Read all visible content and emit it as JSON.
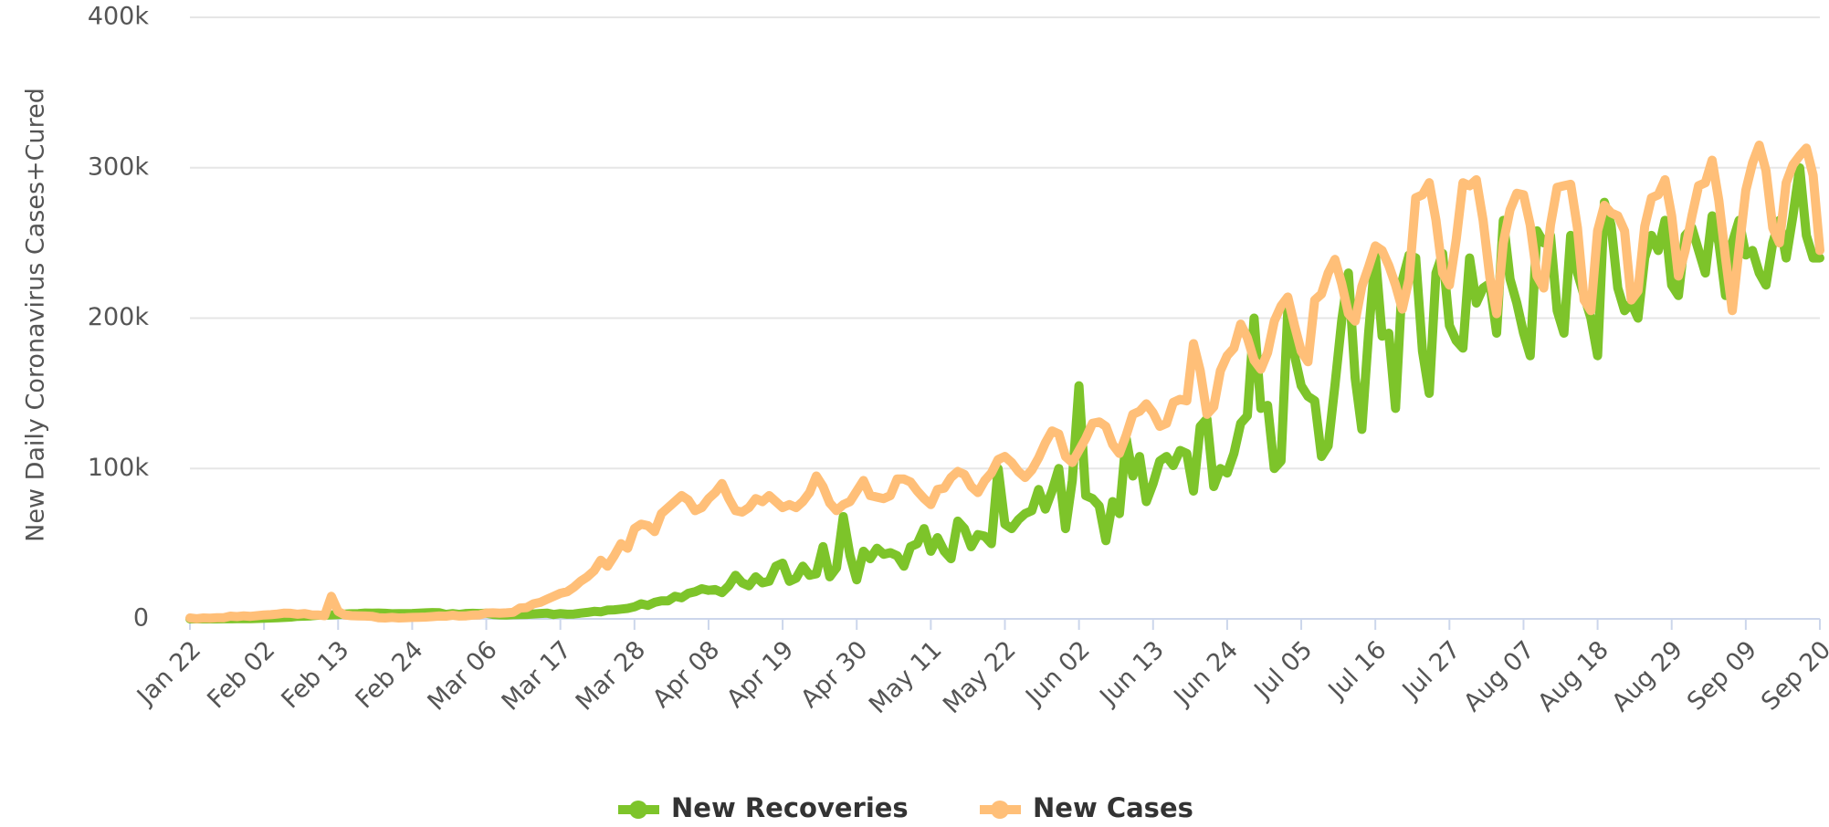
{
  "chart_data": {
    "type": "line",
    "y_label": "New Daily Coronavirus Cases+Cured",
    "legend": "bottom",
    "grid": true,
    "ylim": [
      0,
      400000
    ],
    "yticks": [
      0,
      {
        "value": 100000,
        "label": "100k"
      },
      {
        "value": 200000,
        "label": "200k"
      },
      {
        "value": 300000,
        "label": "300k"
      },
      {
        "value": 400000,
        "label": "400k"
      }
    ],
    "categories": [
      "Jan 22",
      null,
      null,
      null,
      null,
      null,
      null,
      null,
      null,
      null,
      null,
      "Feb 02",
      null,
      null,
      null,
      null,
      null,
      null,
      null,
      null,
      null,
      null,
      "Feb 13",
      null,
      null,
      null,
      null,
      null,
      null,
      null,
      null,
      null,
      null,
      "Feb 24",
      null,
      null,
      null,
      null,
      null,
      null,
      null,
      null,
      null,
      null,
      "Mar 06",
      null,
      null,
      null,
      null,
      null,
      null,
      null,
      null,
      null,
      null,
      "Mar 17",
      null,
      null,
      null,
      null,
      null,
      null,
      null,
      null,
      null,
      null,
      "Mar 28",
      null,
      null,
      null,
      null,
      null,
      null,
      null,
      null,
      null,
      null,
      "Apr 08",
      null,
      null,
      null,
      null,
      null,
      null,
      null,
      null,
      null,
      null,
      "Apr 19",
      null,
      null,
      null,
      null,
      null,
      null,
      null,
      null,
      null,
      null,
      "Apr 30",
      null,
      null,
      null,
      null,
      null,
      null,
      null,
      null,
      null,
      null,
      "May 11",
      null,
      null,
      null,
      null,
      null,
      null,
      null,
      null,
      null,
      null,
      "May 22",
      null,
      null,
      null,
      null,
      null,
      null,
      null,
      null,
      null,
      null,
      "Jun 02",
      null,
      null,
      null,
      null,
      null,
      null,
      null,
      null,
      null,
      null,
      "Jun 13",
      null,
      null,
      null,
      null,
      null,
      null,
      null,
      null,
      null,
      null,
      "Jun 24",
      null,
      null,
      null,
      null,
      null,
      null,
      null,
      null,
      null,
      null,
      "Jul 05",
      null,
      null,
      null,
      null,
      null,
      null,
      null,
      null,
      null,
      null,
      "Jul 16",
      null,
      null,
      null,
      null,
      null,
      null,
      null,
      null,
      null,
      null,
      "Jul 27",
      null,
      null,
      null,
      null,
      null,
      null,
      null,
      null,
      null,
      null,
      "Aug 07",
      null,
      null,
      null,
      null,
      null,
      null,
      null,
      null,
      null,
      null,
      "Aug 18",
      null,
      null,
      null,
      null,
      null,
      null,
      null,
      null,
      null,
      null,
      "Aug 29",
      null,
      null,
      null,
      null,
      null,
      null,
      null,
      null,
      null,
      null,
      "Sep 09",
      null,
      null,
      null,
      null,
      null,
      null,
      null,
      null,
      null,
      null,
      "Sep 20"
    ],
    "series": [
      {
        "name": "New Recoveries",
        "color": "#7dc42a",
        "values": [
          0,
          10,
          20,
          10,
          30,
          50,
          60,
          100,
          150,
          200,
          300,
          450,
          600,
          800,
          1000,
          1200,
          1700,
          1800,
          2000,
          2400,
          2500,
          2700,
          2900,
          3200,
          3400,
          3500,
          3900,
          3800,
          3900,
          3700,
          3400,
          3500,
          3500,
          3600,
          3800,
          4000,
          4200,
          4100,
          3000,
          3500,
          3000,
          3600,
          3700,
          3600,
          3800,
          3000,
          2700,
          2600,
          2800,
          2900,
          3000,
          3300,
          3600,
          3800,
          2900,
          3500,
          3100,
          3200,
          3800,
          4300,
          5000,
          4700,
          5800,
          6000,
          6500,
          7000,
          8000,
          10000,
          9000,
          11000,
          12000,
          12000,
          15000,
          14000,
          17000,
          18000,
          20000,
          19000,
          19500,
          17500,
          22000,
          29000,
          24000,
          22000,
          28000,
          24000,
          25000,
          35000,
          37000,
          25000,
          27000,
          35000,
          29000,
          30000,
          48000,
          28000,
          34000,
          68000,
          42000,
          26000,
          45000,
          40000,
          47000,
          43000,
          44000,
          42000,
          35000,
          48000,
          50000,
          60000,
          45000,
          54000,
          45000,
          40000,
          65000,
          60000,
          48000,
          56000,
          55000,
          50000,
          100000,
          63000,
          60000,
          66000,
          70000,
          72000,
          86000,
          73000,
          85000,
          100000,
          60000,
          92000,
          155000,
          82000,
          80000,
          75000,
          52000,
          78000,
          70000,
          120000,
          95000,
          108000,
          78000,
          90000,
          105000,
          108000,
          102000,
          112000,
          110000,
          85000,
          128000,
          133000,
          88000,
          100000,
          97000,
          110000,
          130000,
          135000,
          200000,
          140000,
          142000,
          100000,
          105000,
          205000,
          175000,
          155000,
          148000,
          145000,
          108000,
          115000,
          155000,
          198000,
          230000,
          160000,
          126000,
          190000,
          242000,
          188000,
          190000,
          140000,
          225000,
          242000,
          240000,
          178000,
          150000,
          230000,
          243000,
          195000,
          185000,
          180000,
          240000,
          210000,
          220000,
          223000,
          190000,
          265000,
          226000,
          210000,
          190000,
          175000,
          258000,
          250000,
          255000,
          205000,
          190000,
          255000,
          230000,
          215000,
          200000,
          175000,
          277000,
          262000,
          220000,
          205000,
          210000,
          200000,
          240000,
          255000,
          245000,
          265000,
          222000,
          215000,
          255000,
          260000,
          245000,
          230000,
          268000,
          250000,
          215000,
          250000,
          265000,
          242000,
          245000,
          230000,
          222000,
          250000,
          265000,
          240000,
          268000,
          300000,
          255000,
          240000,
          240000
        ]
      },
      {
        "name": "New Cases",
        "color": "#ffbf78",
        "values": [
          600,
          100,
          600,
          500,
          700,
          800,
          1800,
          1500,
          2000,
          1700,
          2100,
          2600,
          2800,
          3200,
          3800,
          3700,
          3100,
          3500,
          2700,
          2600,
          2100,
          15000,
          5000,
          2600,
          2100,
          2000,
          1900,
          1700,
          800,
          600,
          1000,
          600,
          700,
          1000,
          1100,
          1200,
          1500,
          1900,
          1800,
          2400,
          1900,
          2000,
          2500,
          2700,
          3900,
          4000,
          3800,
          4000,
          4400,
          7200,
          7500,
          10000,
          11000,
          13000,
          15000,
          17000,
          18000,
          21000,
          25000,
          28000,
          32000,
          39000,
          35000,
          42000,
          50000,
          47000,
          60000,
          63000,
          62000,
          58000,
          70000,
          74000,
          78000,
          82000,
          79000,
          72000,
          74000,
          80000,
          84000,
          90000,
          80000,
          72000,
          71000,
          74000,
          80000,
          78000,
          82000,
          78000,
          74000,
          76000,
          74000,
          78000,
          84000,
          95000,
          88000,
          77000,
          72000,
          76000,
          78000,
          85000,
          92000,
          82000,
          81000,
          80000,
          82000,
          93000,
          93000,
          91000,
          85000,
          80000,
          76000,
          86000,
          87000,
          94000,
          98000,
          96000,
          88000,
          84000,
          92000,
          97000,
          106000,
          108000,
          104000,
          98000,
          94000,
          99000,
          107000,
          117000,
          125000,
          123000,
          108000,
          104000,
          112000,
          120000,
          130000,
          131000,
          128000,
          116000,
          110000,
          122000,
          136000,
          138000,
          143000,
          137000,
          128000,
          130000,
          144000,
          146000,
          145000,
          183000,
          165000,
          136000,
          141000,
          165000,
          175000,
          180000,
          196000,
          187000,
          172000,
          166000,
          177000,
          198000,
          208000,
          214000,
          195000,
          178000,
          171000,
          212000,
          216000,
          230000,
          239000,
          223000,
          203000,
          198000,
          221000,
          234000,
          248000,
          245000,
          235000,
          222000,
          206000,
          226000,
          280000,
          282000,
          290000,
          265000,
          230000,
          222000,
          252000,
          290000,
          288000,
          292000,
          265000,
          227000,
          203000,
          250000,
          272000,
          283000,
          282000,
          262000,
          228000,
          220000,
          262000,
          287000,
          288000,
          289000,
          260000,
          212000,
          205000,
          258000,
          275000,
          270000,
          268000,
          258000,
          212000,
          218000,
          261000,
          280000,
          282000,
          292000,
          268000,
          228000,
          245000,
          268000,
          288000,
          290000,
          305000,
          278000,
          240000,
          205000,
          246000,
          285000,
          303000,
          315000,
          298000,
          260000,
          250000,
          290000,
          302000,
          308000,
          313000,
          295000,
          245000
        ]
      }
    ]
  }
}
